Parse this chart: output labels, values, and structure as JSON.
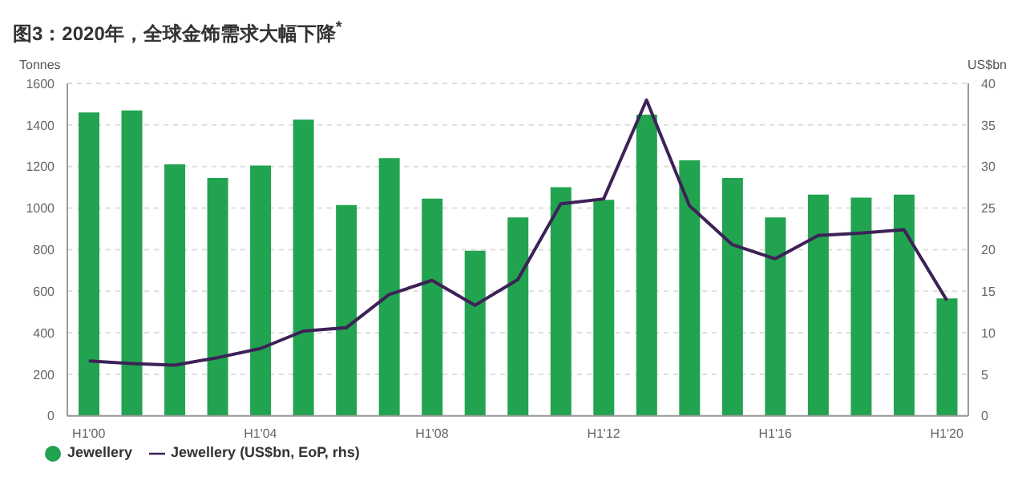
{
  "chart_data": {
    "type": "bar",
    "title": "图3：2020年，全球金饰需求大幅下降$^{*}$",
    "ylabel": "Tonnes",
    "y2label": "US$bn",
    "categories": [
      "H1'00",
      null,
      null,
      null,
      "H1'04",
      null,
      null,
      null,
      "H1'08",
      null,
      null,
      null,
      "H1'12",
      null,
      null,
      null,
      "H1'16",
      null,
      null,
      null,
      "H1'20"
    ],
    "series": [
      {
        "name": "Jewellery",
        "color": "#22a34f",
        "values": [
          1460,
          1470,
          1210,
          1145,
          1205,
          1425,
          1015,
          1240,
          1045,
          795,
          955,
          1100,
          1040,
          1450,
          1230,
          1145,
          955,
          1065,
          1050,
          1065,
          565
        ]
      },
      {
        "name": "Jewellery (US$bn, EoP, rhs)",
        "type": "line",
        "axis": "y2",
        "color": "#3d2157",
        "values": [
          6.6,
          6.3,
          6.1,
          7.0,
          8.1,
          10.2,
          10.6,
          14.6,
          16.3,
          13.3,
          16.4,
          25.5,
          26.1,
          38.0,
          25.3,
          20.6,
          18.9,
          21.7,
          22.0,
          22.4,
          13.9
        ]
      }
    ],
    "ylim": [
      0,
      1600
    ],
    "yticks": [
      0,
      200,
      400,
      600,
      800,
      1000,
      1200,
      1400,
      1600
    ],
    "y2lim": [
      0,
      40
    ],
    "y2ticks": [
      0,
      5,
      10,
      15,
      20,
      25,
      30,
      35,
      40
    ],
    "grid": "y",
    "legend": "bottom left",
    "marker": "none",
    "line_style": "solid"
  }
}
